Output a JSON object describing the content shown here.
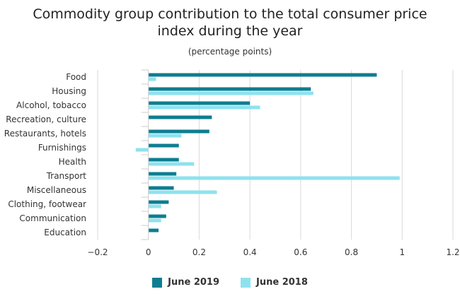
{
  "chart_data": {
    "type": "bar",
    "orientation": "horizontal",
    "title_lines": [
      "Commodity group contribution to the total consumer price",
      "index during the year"
    ],
    "subtitle": "(percentage points)",
    "categories": [
      "Food",
      "Housing",
      "Alcohol, tobacco",
      "Recreation, culture",
      "Restaurants, hotels",
      "Furnishings",
      "Health",
      "Transport",
      "Miscellaneous",
      "Clothing, footwear",
      "Communication",
      "Education"
    ],
    "series": [
      {
        "name": "June 2019",
        "color": "#0e7d91",
        "values": [
          0.9,
          0.64,
          0.4,
          0.25,
          0.24,
          0.12,
          0.12,
          0.11,
          0.1,
          0.08,
          0.07,
          0.04
        ]
      },
      {
        "name": "June 2018",
        "color": "#8ee2ee",
        "values": [
          0.03,
          0.65,
          0.44,
          0.0,
          0.13,
          -0.05,
          0.18,
          0.99,
          0.27,
          0.05,
          0.05,
          0.0
        ]
      }
    ],
    "xlim": [
      -0.2,
      1.2
    ],
    "xticks": [
      "−0.2",
      "0",
      "0.2",
      "0.4",
      "0.6",
      "0.8",
      "1",
      "1.2"
    ],
    "xtick_values": [
      -0.2,
      0,
      0.2,
      0.4,
      0.6,
      0.8,
      1.0,
      1.2
    ],
    "grid": "vertical",
    "legend_position": "bottom"
  }
}
